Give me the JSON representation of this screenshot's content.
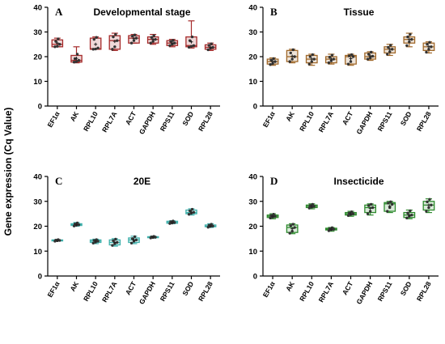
{
  "figure": {
    "ylabel": "Gene expression (Cq Value)"
  },
  "chart_data": [
    {
      "type": "box",
      "panel_letter": "A",
      "title": "Developmental stage",
      "color": "#a52a2a",
      "ylim": [
        0,
        40
      ],
      "yticks": [
        0,
        10,
        20,
        30,
        40
      ],
      "categories": [
        "EF1α",
        "AK",
        "RPL10",
        "RPL7A",
        "ACT",
        "GAPDH",
        "RPS11",
        "SOD",
        "RPL28"
      ],
      "boxes": [
        {
          "min": 24.0,
          "q1": 24.0,
          "median": 25.0,
          "q3": 26.8,
          "max": 27.5,
          "mean": 25.5,
          "points": [
            24.0,
            24.2,
            25.0,
            26.2,
            27.2
          ]
        },
        {
          "min": 17.5,
          "q1": 17.8,
          "median": 18.5,
          "q3": 20.5,
          "max": 24.0,
          "mean": 19.3,
          "points": [
            17.8,
            18.0,
            18.5,
            19.2,
            21.0
          ]
        },
        {
          "min": 23.0,
          "q1": 23.0,
          "median": 23.2,
          "q3": 27.5,
          "max": 28.0,
          "mean": 25.0,
          "points": [
            23.0,
            23.1,
            23.5,
            27.0,
            27.8
          ]
        },
        {
          "min": 22.5,
          "q1": 23.0,
          "median": 26.5,
          "q3": 28.5,
          "max": 29.5,
          "mean": 26.2,
          "points": [
            23.0,
            24.0,
            26.5,
            28.0,
            29.0
          ]
        },
        {
          "min": 25.5,
          "q1": 25.5,
          "median": 27.5,
          "q3": 28.5,
          "max": 29.0,
          "mean": 27.3,
          "points": [
            25.5,
            26.5,
            27.5,
            28.3,
            28.8
          ]
        },
        {
          "min": 25.0,
          "q1": 25.5,
          "median": 27.0,
          "q3": 28.0,
          "max": 29.0,
          "mean": 27.0,
          "points": [
            25.5,
            26.2,
            27.0,
            27.8,
            28.5
          ]
        },
        {
          "min": 24.0,
          "q1": 24.5,
          "median": 25.5,
          "q3": 26.5,
          "max": 27.0,
          "mean": 25.5,
          "points": [
            24.5,
            25.0,
            25.5,
            26.2,
            26.6
          ]
        },
        {
          "min": 23.5,
          "q1": 24.0,
          "median": 24.5,
          "q3": 28.0,
          "max": 34.5,
          "mean": 26.0,
          "points": [
            23.8,
            24.2,
            24.5,
            26.5,
            28.0
          ]
        },
        {
          "min": 22.5,
          "q1": 23.0,
          "median": 23.8,
          "q3": 24.8,
          "max": 25.5,
          "mean": 23.8,
          "points": [
            22.8,
            23.4,
            23.8,
            24.6,
            25.2
          ]
        }
      ]
    },
    {
      "type": "box",
      "panel_letter": "B",
      "title": "Tissue",
      "color": "#a0682a",
      "ylim": [
        0,
        40
      ],
      "yticks": [
        0,
        10,
        20,
        30,
        40
      ],
      "categories": [
        "EF1α",
        "AK",
        "RPL10",
        "RPL7A",
        "ACT",
        "GAPDH",
        "RPS11",
        "SOD",
        "RPL28"
      ],
      "boxes": [
        {
          "min": 16.5,
          "q1": 17.0,
          "median": 18.0,
          "q3": 19.0,
          "max": 19.5,
          "mean": 18.0,
          "points": [
            16.8,
            17.2,
            18.0,
            18.6,
            19.2
          ]
        },
        {
          "min": 17.5,
          "q1": 18.0,
          "median": 20.0,
          "q3": 22.5,
          "max": 23.0,
          "mean": 20.2,
          "points": [
            18.0,
            19.0,
            20.0,
            21.5,
            22.8
          ]
        },
        {
          "min": 16.5,
          "q1": 17.5,
          "median": 19.0,
          "q3": 20.5,
          "max": 21.0,
          "mean": 19.0,
          "points": [
            17.0,
            18.0,
            19.0,
            20.0,
            20.8
          ]
        },
        {
          "min": 17.0,
          "q1": 17.5,
          "median": 19.0,
          "q3": 20.0,
          "max": 21.0,
          "mean": 19.0,
          "points": [
            17.5,
            18.3,
            19.0,
            19.8,
            20.6
          ]
        },
        {
          "min": 16.5,
          "q1": 17.0,
          "median": 20.0,
          "q3": 20.5,
          "max": 21.0,
          "mean": 19.2,
          "points": [
            17.0,
            18.0,
            20.0,
            20.3,
            20.8
          ]
        },
        {
          "min": 18.5,
          "q1": 19.0,
          "median": 20.0,
          "q3": 21.5,
          "max": 22.0,
          "mean": 20.3,
          "points": [
            19.0,
            19.5,
            20.2,
            21.0,
            21.8
          ]
        },
        {
          "min": 20.5,
          "q1": 21.5,
          "median": 23.0,
          "q3": 24.0,
          "max": 25.0,
          "mean": 23.0,
          "points": [
            21.0,
            22.0,
            23.0,
            23.8,
            24.6
          ]
        },
        {
          "min": 24.0,
          "q1": 25.5,
          "median": 27.0,
          "q3": 28.0,
          "max": 29.5,
          "mean": 27.0,
          "points": [
            24.5,
            26.0,
            27.0,
            28.0,
            29.0
          ]
        },
        {
          "min": 21.5,
          "q1": 22.5,
          "median": 24.0,
          "q3": 25.5,
          "max": 26.0,
          "mean": 24.0,
          "points": [
            21.8,
            23.0,
            24.0,
            25.0,
            25.8
          ]
        }
      ]
    },
    {
      "type": "box",
      "panel_letter": "C",
      "title": "20E",
      "color": "#3fb1ac",
      "ylim": [
        0,
        40
      ],
      "yticks": [
        0,
        10,
        20,
        30,
        40
      ],
      "categories": [
        "EF1α",
        "AK",
        "RPL10",
        "RPL7A",
        "ACT",
        "GAPDH",
        "RPS11",
        "SOD",
        "RPL28"
      ],
      "boxes": [
        {
          "min": 14.0,
          "q1": 14.1,
          "median": 14.3,
          "q3": 14.5,
          "max": 14.6,
          "mean": 14.3,
          "points": [
            14.0,
            14.2,
            14.3,
            14.4,
            14.6
          ]
        },
        {
          "min": 20.0,
          "q1": 20.3,
          "median": 20.6,
          "q3": 21.0,
          "max": 21.5,
          "mean": 20.6,
          "points": [
            20.1,
            20.4,
            20.6,
            20.9,
            21.3
          ]
        },
        {
          "min": 13.0,
          "q1": 13.5,
          "median": 14.0,
          "q3": 14.5,
          "max": 14.8,
          "mean": 14.0,
          "points": [
            13.2,
            13.6,
            14.0,
            14.3,
            14.6
          ]
        },
        {
          "min": 12.0,
          "q1": 12.5,
          "median": 13.5,
          "q3": 14.5,
          "max": 15.0,
          "mean": 13.5,
          "points": [
            12.3,
            13.0,
            13.5,
            14.2,
            14.8
          ]
        },
        {
          "min": 13.0,
          "q1": 13.5,
          "median": 14.5,
          "q3": 15.3,
          "max": 16.0,
          "mean": 14.5,
          "points": [
            13.2,
            14.0,
            14.5,
            15.0,
            15.8
          ]
        },
        {
          "min": 15.2,
          "q1": 15.4,
          "median": 15.6,
          "q3": 15.8,
          "max": 16.0,
          "mean": 15.6,
          "points": [
            15.3,
            15.5,
            15.6,
            15.7,
            15.9
          ]
        },
        {
          "min": 21.0,
          "q1": 21.2,
          "median": 21.5,
          "q3": 22.0,
          "max": 22.2,
          "mean": 21.6,
          "points": [
            21.1,
            21.3,
            21.5,
            21.8,
            22.1
          ]
        },
        {
          "min": 24.5,
          "q1": 25.0,
          "median": 25.5,
          "q3": 26.5,
          "max": 27.0,
          "mean": 25.7,
          "points": [
            24.8,
            25.2,
            25.6,
            26.2,
            26.8
          ]
        },
        {
          "min": 19.5,
          "q1": 19.8,
          "median": 20.0,
          "q3": 20.5,
          "max": 21.0,
          "mean": 20.1,
          "points": [
            19.6,
            19.9,
            20.1,
            20.4,
            20.8
          ]
        }
      ]
    },
    {
      "type": "box",
      "panel_letter": "D",
      "title": "Insecticide",
      "color": "#2e8b2e",
      "ylim": [
        0,
        40
      ],
      "yticks": [
        0,
        10,
        20,
        30,
        40
      ],
      "categories": [
        "EF1α",
        "AK",
        "RPL10",
        "RPL7A",
        "ACT",
        "GAPDH",
        "RPS11",
        "SOD",
        "RPL28"
      ],
      "boxes": [
        {
          "min": 23.0,
          "q1": 23.5,
          "median": 24.0,
          "q3": 24.5,
          "max": 25.0,
          "mean": 24.0,
          "points": [
            23.3,
            23.7,
            24.0,
            24.3,
            24.8
          ]
        },
        {
          "min": 17.0,
          "q1": 17.5,
          "median": 19.5,
          "q3": 20.5,
          "max": 21.0,
          "mean": 19.0,
          "points": [
            17.2,
            18.0,
            19.5,
            20.2,
            20.8
          ]
        },
        {
          "min": 27.0,
          "q1": 27.5,
          "median": 28.0,
          "q3": 28.5,
          "max": 29.0,
          "mean": 28.0,
          "points": [
            27.3,
            27.7,
            28.0,
            28.3,
            28.8
          ]
        },
        {
          "min": 18.0,
          "q1": 18.5,
          "median": 18.8,
          "q3": 19.2,
          "max": 19.5,
          "mean": 18.8,
          "points": [
            18.2,
            18.6,
            18.8,
            19.0,
            19.4
          ]
        },
        {
          "min": 24.0,
          "q1": 24.5,
          "median": 25.0,
          "q3": 25.5,
          "max": 26.0,
          "mean": 25.0,
          "points": [
            24.3,
            24.7,
            25.0,
            25.3,
            25.8
          ]
        },
        {
          "min": 24.5,
          "q1": 25.5,
          "median": 27.5,
          "q3": 28.5,
          "max": 29.0,
          "mean": 27.2,
          "points": [
            25.0,
            26.0,
            27.5,
            28.3,
            28.8
          ]
        },
        {
          "min": 25.5,
          "q1": 26.0,
          "median": 29.0,
          "q3": 29.5,
          "max": 30.0,
          "mean": 28.0,
          "points": [
            26.0,
            27.5,
            28.8,
            29.3,
            29.8
          ]
        },
        {
          "min": 23.0,
          "q1": 23.5,
          "median": 24.5,
          "q3": 25.5,
          "max": 26.5,
          "mean": 24.5,
          "points": [
            23.3,
            24.0,
            24.5,
            25.3,
            26.2
          ]
        },
        {
          "min": 25.5,
          "q1": 26.5,
          "median": 28.5,
          "q3": 30.0,
          "max": 31.0,
          "mean": 28.5,
          "points": [
            26.0,
            27.5,
            28.5,
            29.8,
            30.8
          ]
        }
      ]
    }
  ]
}
